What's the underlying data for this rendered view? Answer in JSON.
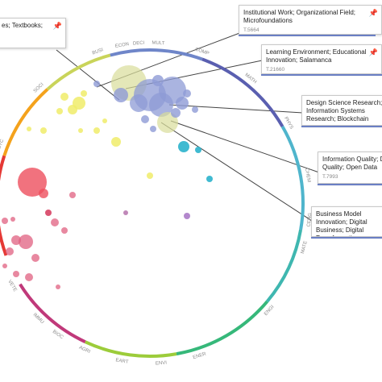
{
  "labels": [
    "BUSI",
    "ECON",
    "DECI",
    "MULT",
    "COMP",
    "MATH",
    "PHYS",
    "CHEM",
    "CENG",
    "MATE",
    "ENGI",
    "ENER",
    "ENVI",
    "EART",
    "AGRI",
    "BIOC",
    "IMMU",
    "VETE",
    "SOCI",
    "PSYC"
  ],
  "tooltips": [
    {
      "title": "es; Textbooks;",
      "id": "",
      "pin": true
    },
    {
      "title": "Institutional Work; Organizational Field; Microfoundations",
      "id": "T.5664",
      "pin": true
    },
    {
      "title": "Learning Environment; Educational Innovation; Salamanca",
      "id": "T.21660",
      "pin": true
    },
    {
      "title": "Design Science Research; Information Systems Research; Blockchain",
      "id": "T.8804",
      "pin": false
    },
    {
      "title": "Information Quality; Data Quality; Open Data",
      "id": "T.7993",
      "pin": false
    },
    {
      "title": "Business Model Innovation; Digital Business; Digital Transformation",
      "id": "T.8491",
      "pin": false
    }
  ],
  "colors": {
    "pin": "#4a77c8",
    "ring": [
      "#e53935",
      "#f4a21c",
      "#c9d45a",
      "#6f86c9",
      "#5a5fb0",
      "#4fb5cc",
      "#3fb7b0",
      "#36b87a",
      "#9ccc3a",
      "#c0397a"
    ]
  }
}
